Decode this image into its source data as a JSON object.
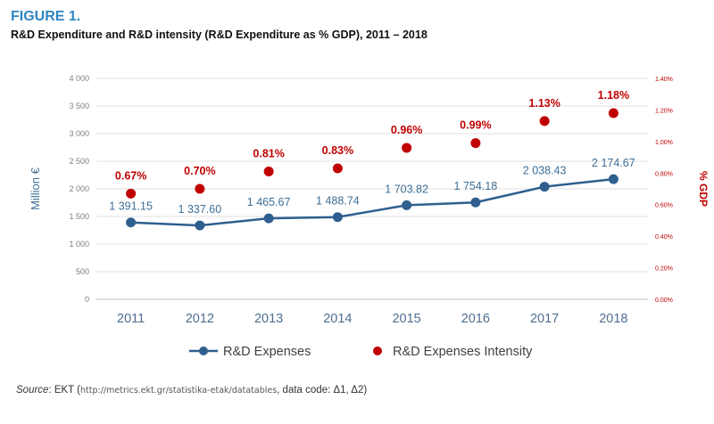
{
  "figure": {
    "label": "FIGURE 1.",
    "title": "R&D Expenditure and R&D intensity (R&D Expenditure as % GDP), 2011 – 2018"
  },
  "colors": {
    "accent_blue": "#2e86c1",
    "line_blue": "#2f5f8f",
    "label_blue": "#3c6e96",
    "dot_red": "#c00000",
    "grid": "#e2e2e2"
  },
  "chart_data": {
    "type": "line",
    "categories": [
      "2011",
      "2012",
      "2013",
      "2014",
      "2015",
      "2016",
      "2017",
      "2018"
    ],
    "series": [
      {
        "name": "R&D Expenses",
        "axis": "left",
        "style": "line-with-markers",
        "values": [
          1391.15,
          1337.6,
          1465.67,
          1488.74,
          1703.82,
          1754.18,
          2038.43,
          2174.67
        ],
        "labels": [
          "1 391.15",
          "1 337.60",
          "1 465.67",
          "1 488.74",
          "1 703.82",
          "1 754.18",
          "2 038.43",
          "2 174.67"
        ]
      },
      {
        "name": "R&D Expenses Intensity",
        "axis": "right",
        "style": "markers-only",
        "values": [
          0.67,
          0.7,
          0.81,
          0.83,
          0.96,
          0.99,
          1.13,
          1.18
        ],
        "labels": [
          "0.67%",
          "0.70%",
          "0.81%",
          "0.83%",
          "0.96%",
          "0.99%",
          "1.13%",
          "1.18%"
        ]
      }
    ],
    "ylabel_left": "Million €",
    "ylabel_right": "% GDP",
    "ylim_left": [
      0,
      4000
    ],
    "ylim_right": [
      0,
      1.4
    ],
    "left_ticks": [
      0,
      500,
      1000,
      1500,
      2000,
      2500,
      3000,
      3500,
      4000
    ],
    "left_tick_labels": [
      "0",
      "500",
      "1 000",
      "1 500",
      "2 000",
      "2 500",
      "3 000",
      "3 500",
      "4 000"
    ],
    "right_ticks": [
      0,
      0.2,
      0.4,
      0.6,
      0.8,
      1.0,
      1.2,
      1.4
    ],
    "right_tick_labels": [
      "0.00%",
      "0.20%",
      "0.40%",
      "0.60%",
      "0.80%",
      "1.00%",
      "1.20%",
      "1.40%"
    ],
    "grid": true,
    "legend_position": "bottom"
  },
  "source": {
    "label": "Source",
    "text_pre": ": EKT (",
    "url": "http://metrics.ekt.gr/statistika-etak/datatables",
    "text_post": ", data code: Δ1, Δ2)"
  }
}
